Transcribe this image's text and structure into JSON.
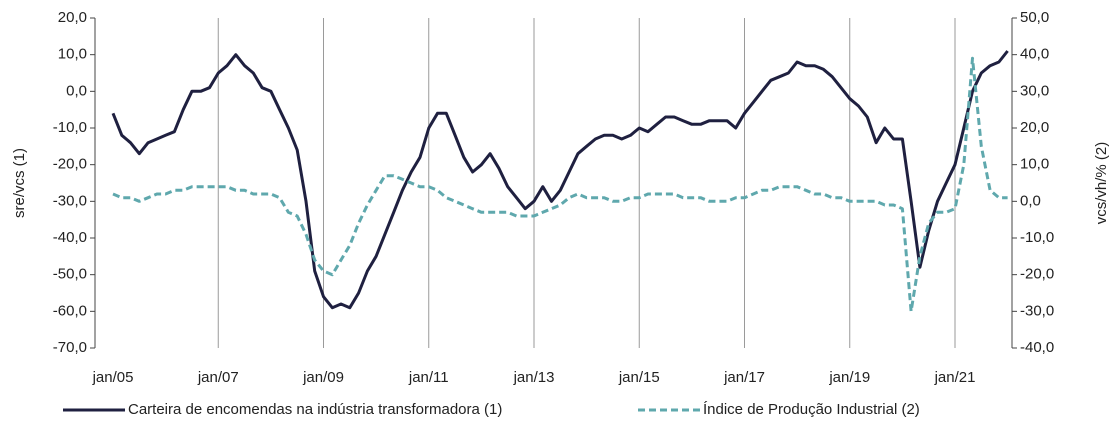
{
  "chart_data": {
    "type": "line",
    "ylabel": "sre/vcs (1)",
    "y2label": "vcs/vh/% (2)",
    "ylim": [
      -70,
      20
    ],
    "yticks": [
      {
        "value": -70,
        "label": "-70,0"
      },
      {
        "value": -60,
        "label": "-60,0"
      },
      {
        "value": -50,
        "label": "-50,0"
      },
      {
        "value": -40,
        "label": "-40,0"
      },
      {
        "value": -30,
        "label": "-30,0"
      },
      {
        "value": -20,
        "label": "-20,0"
      },
      {
        "value": -10,
        "label": "-10,0"
      },
      {
        "value": 0,
        "label": "0,0"
      },
      {
        "value": 10,
        "label": "10,0"
      },
      {
        "value": 20,
        "label": "20,0"
      }
    ],
    "y2lim": [
      -40,
      50
    ],
    "y2ticks": [
      {
        "value": -40,
        "label": "-40,0"
      },
      {
        "value": -30,
        "label": "-30,0"
      },
      {
        "value": -20,
        "label": "-20,0"
      },
      {
        "value": -10,
        "label": "-10,0"
      },
      {
        "value": 0,
        "label": "0,0"
      },
      {
        "value": 10,
        "label": "10,0"
      },
      {
        "value": 20,
        "label": "20,0"
      },
      {
        "value": 30,
        "label": "30,0"
      },
      {
        "value": 40,
        "label": "40,0"
      },
      {
        "value": 50,
        "label": "50,0"
      }
    ],
    "categories": [
      "jan/05",
      null,
      null,
      null,
      null,
      null,
      null,
      null,
      null,
      null,
      null,
      null,
      "jan/07",
      null,
      null,
      null,
      null,
      null,
      null,
      null,
      null,
      null,
      null,
      null,
      "jan/09",
      null,
      null,
      null,
      null,
      null,
      null,
      null,
      null,
      null,
      null,
      null,
      "jan/11",
      null,
      null,
      null,
      null,
      null,
      null,
      null,
      null,
      null,
      null,
      null,
      "jan/13",
      null,
      null,
      null,
      null,
      null,
      null,
      null,
      null,
      null,
      null,
      null,
      "jan/15",
      null,
      null,
      null,
      null,
      null,
      null,
      null,
      null,
      null,
      null,
      null,
      "jan/17",
      null,
      null,
      null,
      null,
      null,
      null,
      null,
      null,
      null,
      null,
      null,
      "jan/19",
      null,
      null,
      null,
      null,
      null,
      null,
      null,
      null,
      null,
      null,
      null,
      "jan/21",
      null,
      null,
      null,
      null,
      null,
      null
    ],
    "series": [
      {
        "name": "Carteira de encomendas na indústria transformadora (1)",
        "color": "#1f2040",
        "style": "solid",
        "values": [
          -6,
          -12,
          -14,
          -17,
          -14,
          -13,
          -12,
          -11,
          -5,
          0,
          0,
          1,
          5,
          7,
          10,
          7,
          5,
          1,
          0,
          -5,
          -10,
          -16,
          -30,
          -49,
          -56,
          -59,
          -58,
          -59,
          -55,
          -49,
          -45,
          -39,
          -33,
          -27,
          -22,
          -18,
          -10,
          -6,
          -6,
          -12,
          -18,
          -22,
          -20,
          -17,
          -21,
          -26,
          -29,
          -32,
          -30,
          -26,
          -30,
          -27,
          -22,
          -17,
          -15,
          -13,
          -12,
          -12,
          -13,
          -12,
          -10,
          -11,
          -9,
          -7,
          -7,
          -8,
          -9,
          -9,
          -8,
          -8,
          -8,
          -10,
          -6,
          -3,
          0,
          3,
          4,
          5,
          8,
          7,
          7,
          6,
          4,
          1,
          -2,
          -4,
          -7,
          -14,
          -10,
          -13,
          -13,
          -30,
          -48,
          -38,
          -30,
          -25,
          -20,
          -10,
          0,
          5,
          7,
          8,
          11
        ]
      },
      {
        "name": "Índice de Produção Industrial (2)",
        "color": "#5fa8ad",
        "style": "dashed",
        "axis": "y2",
        "values": [
          2,
          1,
          1,
          0,
          1,
          2,
          2,
          3,
          3,
          4,
          4,
          4,
          4,
          4,
          3,
          3,
          2,
          2,
          2,
          1,
          -3,
          -4,
          -9,
          -16,
          -19,
          -20,
          -16,
          -12,
          -6,
          -1,
          3,
          7,
          7,
          6,
          5,
          4,
          4,
          3,
          1,
          0,
          -1,
          -2,
          -3,
          -3,
          -3,
          -3,
          -4,
          -4,
          -4,
          -3,
          -2,
          -1,
          1,
          2,
          1,
          1,
          1,
          0,
          0,
          1,
          1,
          2,
          2,
          2,
          2,
          1,
          1,
          1,
          0,
          0,
          0,
          1,
          1,
          2,
          3,
          3,
          4,
          4,
          4,
          3,
          2,
          2,
          1,
          1,
          0,
          0,
          0,
          0,
          -1,
          -1,
          -2,
          -30,
          -15,
          -6,
          -3,
          -3,
          -2,
          10,
          39,
          15,
          3,
          1,
          1
        ]
      }
    ]
  }
}
